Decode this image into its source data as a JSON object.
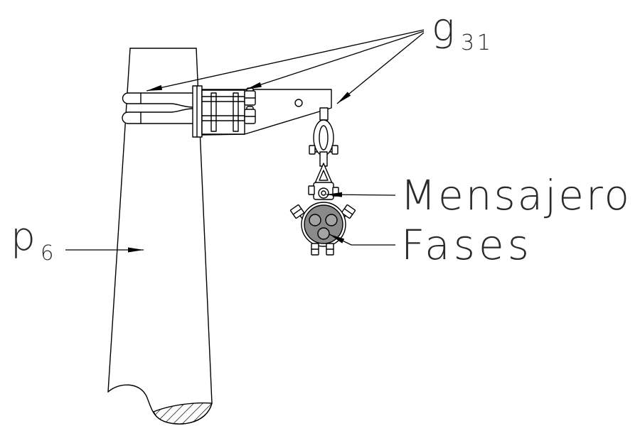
{
  "labels": {
    "g_letter": "g",
    "g_subscript": "31",
    "messenger": "Mensajero",
    "phases": "Fases",
    "p_letter": "p",
    "p_subscript": "6"
  },
  "colors": {
    "line": "#000000",
    "cable_fill": "#8a8a8a",
    "phase_fill": "#a3a3a3",
    "background": "#ffffff"
  }
}
